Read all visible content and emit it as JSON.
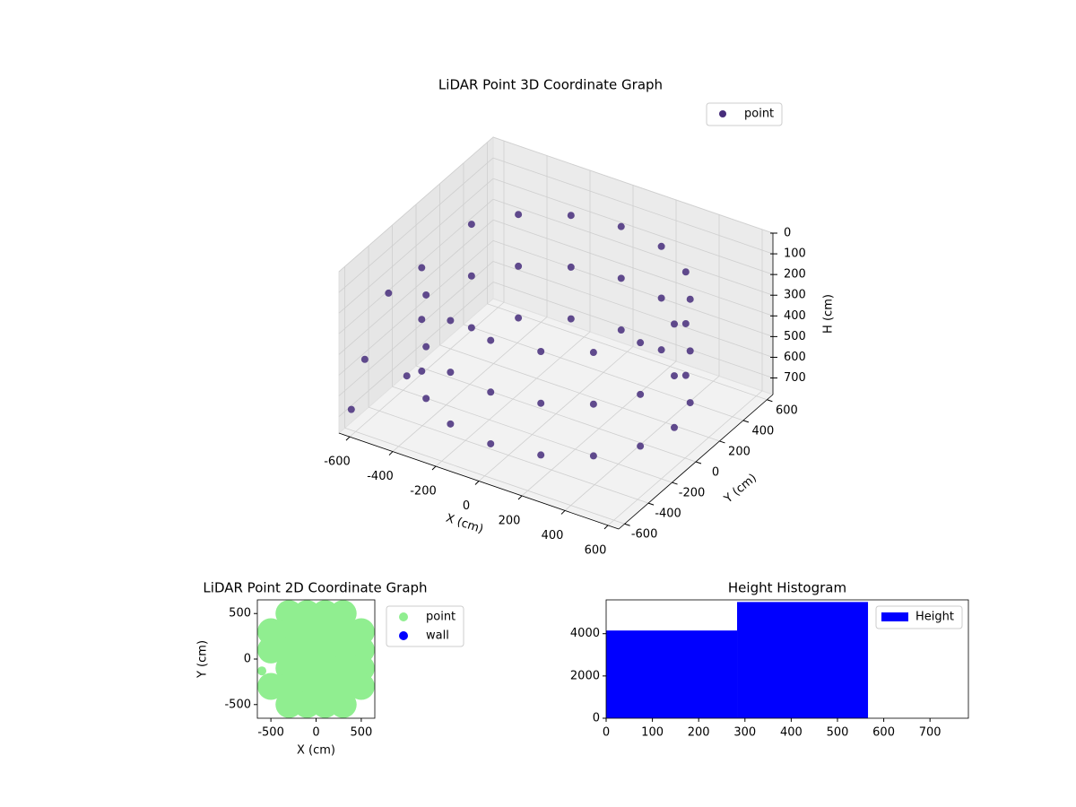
{
  "chart_data": [
    {
      "type": "scatter3d",
      "title": "LiDAR Point 3D Coordinate Graph",
      "xlabel": "X (cm)",
      "ylabel": "Y (cm)",
      "zlabel": "H (cm)",
      "xlim": [
        -650,
        650
      ],
      "ylim": [
        -650,
        650
      ],
      "zlim": [
        0,
        780
      ],
      "zinvert": true,
      "xticks": [
        -600,
        -400,
        -200,
        0,
        200,
        400,
        600
      ],
      "yticks": [
        -600,
        -400,
        -200,
        0,
        200,
        400,
        600
      ],
      "zticks": [
        0,
        100,
        200,
        300,
        400,
        500,
        600,
        700
      ],
      "grid": true,
      "legend": "upper right",
      "series": [
        {
          "name": "point",
          "color": "#472d7b",
          "x": [
            550,
            508,
            389,
            210,
            0,
            -210,
            -389,
            -508,
            -508,
            -389,
            -210,
            0,
            210,
            389,
            508,
            550,
            508,
            389,
            210,
            0,
            -210,
            -389,
            -508,
            -508,
            -389,
            -210,
            0,
            210,
            389,
            508,
            550,
            508,
            389,
            210,
            0,
            -210,
            -389,
            -508,
            -508,
            -389,
            -210,
            0,
            210,
            389,
            508,
            -640,
            -640,
            -620,
            -500
          ],
          "y": [
            0,
            210,
            389,
            508,
            550,
            508,
            389,
            210,
            -210,
            -389,
            -508,
            -550,
            -508,
            -389,
            -210,
            0,
            210,
            389,
            508,
            550,
            508,
            389,
            210,
            -210,
            -389,
            -508,
            -550,
            -508,
            -389,
            -210,
            0,
            210,
            389,
            508,
            550,
            508,
            389,
            210,
            -210,
            -389,
            -508,
            -550,
            -508,
            -389,
            -210,
            -250,
            -450,
            -600,
            -350
          ],
          "z": [
            150,
            150,
            150,
            150,
            150,
            150,
            150,
            150,
            150,
            150,
            150,
            150,
            150,
            150,
            150,
            400,
            400,
            400,
            400,
            400,
            400,
            400,
            400,
            400,
            400,
            400,
            400,
            400,
            400,
            400,
            650,
            650,
            650,
            650,
            650,
            650,
            650,
            650,
            650,
            650,
            650,
            650,
            650,
            650,
            650,
            300,
            520,
            680,
            600
          ]
        }
      ]
    },
    {
      "type": "scatter",
      "title": "LiDAR Point 2D Coordinate Graph",
      "xlabel": "X (cm)",
      "ylabel": "Y (cm)",
      "xlim": [
        -650,
        650
      ],
      "ylim": [
        -650,
        650
      ],
      "xticks": [
        -500,
        0,
        500
      ],
      "yticks": [
        -500,
        0,
        500
      ],
      "legend": "outside right",
      "series": [
        {
          "name": "point",
          "color": "#90ee90",
          "x": [
            -300,
            -100,
            100,
            300,
            -500,
            -300,
            -100,
            100,
            300,
            500,
            -500,
            -300,
            -100,
            100,
            300,
            500,
            -300,
            -100,
            100,
            300,
            500,
            -500,
            -300,
            -100,
            100,
            300,
            500,
            -300,
            -100,
            100,
            300,
            -600
          ],
          "y": [
            500,
            500,
            500,
            500,
            300,
            300,
            300,
            300,
            300,
            300,
            100,
            100,
            100,
            100,
            100,
            100,
            -100,
            -100,
            -100,
            -100,
            -100,
            -300,
            -300,
            -300,
            -300,
            -300,
            -300,
            -500,
            -500,
            -500,
            -500,
            -130
          ]
        },
        {
          "name": "wall",
          "color": "#0000ff",
          "x": [],
          "y": []
        }
      ]
    },
    {
      "type": "histogram",
      "title": "Height Histogram",
      "bins": [
        0,
        283,
        566
      ],
      "values": [
        4150,
        5500
      ],
      "color": "#0000ff",
      "series_name": "Height",
      "legend": "upper right",
      "xlim": [
        0,
        783
      ],
      "ylim": [
        0,
        5600
      ],
      "xticks": [
        0,
        100,
        200,
        300,
        400,
        500,
        600,
        700
      ],
      "yticks": [
        0,
        2000,
        4000
      ]
    }
  ]
}
